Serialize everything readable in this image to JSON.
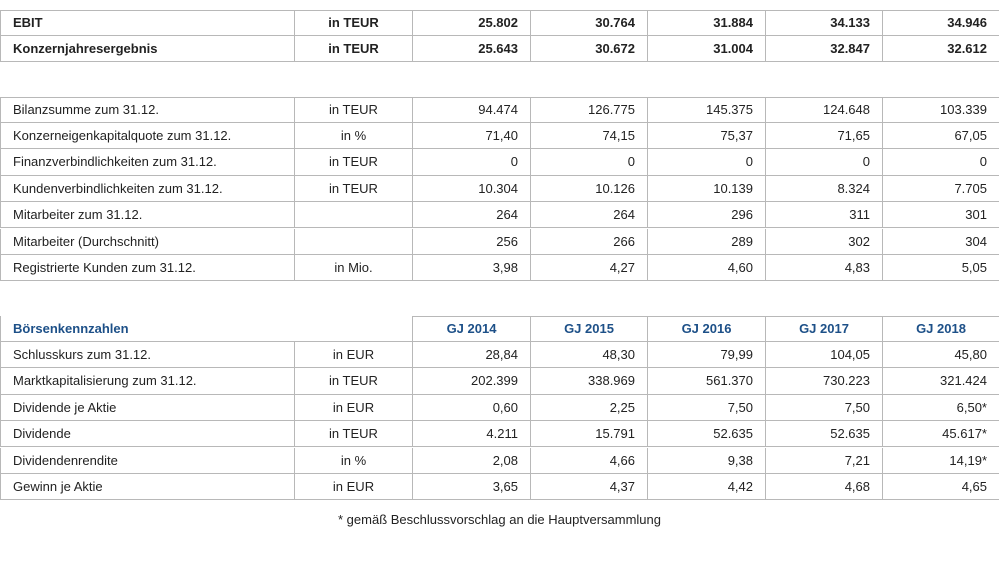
{
  "sections": [
    {
      "rows": [
        {
          "label": "EBIT",
          "unit": "in TEUR",
          "values": [
            "25.802",
            "30.764",
            "31.884",
            "34.133",
            "34.946"
          ]
        },
        {
          "label": "Konzernjahresergebnis",
          "unit": "in TEUR",
          "values": [
            "25.643",
            "30.672",
            "31.004",
            "32.847",
            "32.612"
          ]
        }
      ]
    },
    {
      "rows": [
        {
          "label": "Bilanzsumme zum 31.12.",
          "unit": "in TEUR",
          "values": [
            "94.474",
            "126.775",
            "145.375",
            "124.648",
            "103.339"
          ]
        },
        {
          "label": "Konzerneigenkapitalquote zum 31.12.",
          "unit": "in %",
          "values": [
            "71,40",
            "74,15",
            "75,37",
            "71,65",
            "67,05"
          ]
        },
        {
          "label": "Finanzverbindlichkeiten zum 31.12.",
          "unit": "in TEUR",
          "values": [
            "0",
            "0",
            "0",
            "0",
            "0"
          ]
        },
        {
          "label": "Kundenverbindlichkeiten zum 31.12.",
          "unit": "in TEUR",
          "values": [
            "10.304",
            "10.126",
            "10.139",
            "8.324",
            "7.705"
          ]
        },
        {
          "label": "Mitarbeiter zum 31.12.",
          "values": [
            "264",
            "264",
            "296",
            "311",
            "301"
          ]
        },
        {
          "label": "Mitarbeiter (Durchschnitt)",
          "values": [
            "256",
            "266",
            "289",
            "302",
            "304"
          ]
        },
        {
          "label": "Registrierte Kunden zum 31.12.",
          "unit": "in Mio.",
          "values": [
            "3,98",
            "4,27",
            "4,60",
            "4,83",
            "5,05"
          ]
        }
      ]
    },
    {
      "header": {
        "label": "Börsenkennzahlen",
        "columns": [
          "GJ 2014",
          "GJ 2015",
          "GJ 2016",
          "GJ 2017",
          "GJ 2018"
        ]
      },
      "rows": [
        {
          "label": "Schlusskurs zum 31.12.",
          "unit": "in EUR",
          "values": [
            "28,84",
            "48,30",
            "79,99",
            "104,05",
            "45,80"
          ]
        },
        {
          "label": "Marktkapitalisierung zum 31.12.",
          "unit": "in TEUR",
          "values": [
            "202.399",
            "338.969",
            "561.370",
            "730.223",
            "321.424"
          ]
        },
        {
          "label": "Dividende je Aktie",
          "unit": "in EUR",
          "values": [
            "0,60",
            "2,25",
            "7,50",
            "7,50",
            "6,50*"
          ]
        },
        {
          "label": "Dividende",
          "unit": "in TEUR",
          "values": [
            "4.211",
            "15.791",
            "52.635",
            "52.635",
            "45.617*"
          ]
        },
        {
          "label": "Dividendenrendite",
          "unit": "in %",
          "values": [
            "2,08",
            "4,66",
            "9,38",
            "7,21",
            "14,19*"
          ]
        },
        {
          "label": "Gewinn je Aktie",
          "unit": "in EUR",
          "values": [
            "3,65",
            "4,37",
            "4,42",
            "4,68",
            "4,65"
          ]
        }
      ]
    }
  ],
  "footnote": "* gemäß Beschlussvorschlag an die Hauptversammlung"
}
